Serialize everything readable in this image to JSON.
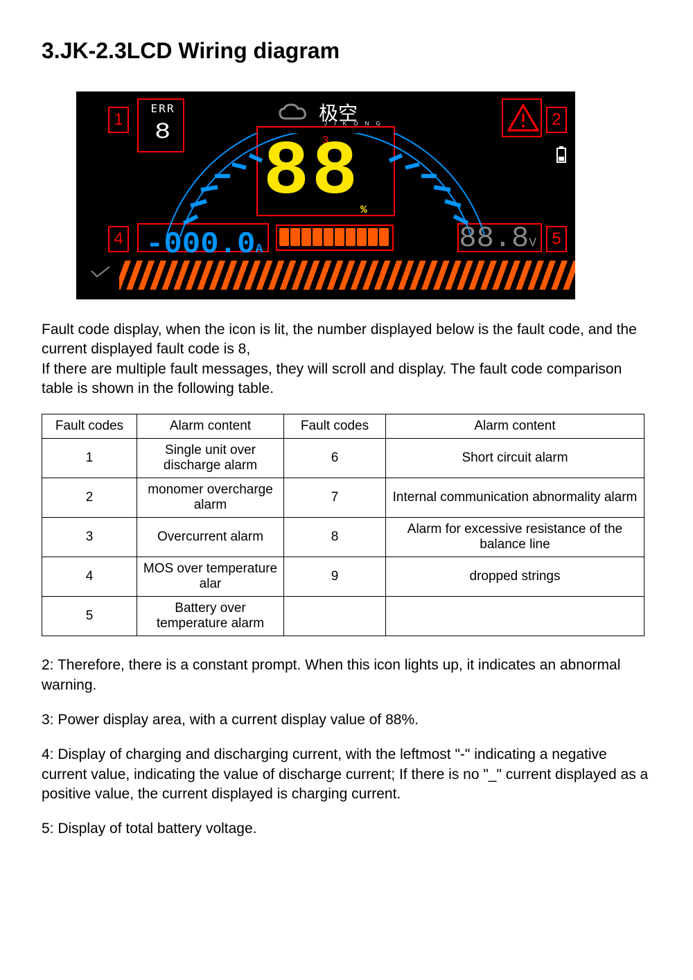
{
  "title": "3.JK-2.3LCD Wiring diagram",
  "lcd": {
    "err_label": "ERR",
    "err_digit": "8",
    "logo_cn": "极空",
    "logo_en": "J I K O N G",
    "big_soc": "88",
    "pct_symbol": "%",
    "current_text": "-000.0",
    "current_unit": "A",
    "voltage_text": "88.8",
    "voltage_unit": "V",
    "bar_segments": 10,
    "callouts": {
      "c1": "1",
      "c2": "2",
      "c3": "3",
      "c4": "4",
      "c5": "5"
    },
    "colors": {
      "bg": "#000000",
      "yellow": "#ffe600",
      "orange": "#ff5a00",
      "blue": "#0094ff",
      "red": "#ff0000",
      "gray": "#888888",
      "white": "#ffffff"
    }
  },
  "para1": "Fault code display, when the icon is lit, the number displayed below is the fault code, and the current displayed fault code is 8,",
  "para1b": "If there are multiple fault messages, they will scroll and display. The fault code comparison table is shown in the following table.",
  "table": {
    "headers": {
      "h1": "Fault codes",
      "h2": "Alarm content",
      "h3": "Fault codes",
      "h4": "Alarm content"
    },
    "rows": [
      {
        "a": "1",
        "b": "Single unit over discharge alarm",
        "c": "6",
        "d": "Short circuit alarm"
      },
      {
        "a": "2",
        "b": "monomer overcharge alarm",
        "c": "7",
        "d": "Internal communication abnormality alarm"
      },
      {
        "a": "3",
        "b": "Overcurrent alarm",
        "c": "8",
        "d": "Alarm for excessive resistance of the balance line"
      },
      {
        "a": "4",
        "b": "MOS over temperature alar",
        "c": "9",
        "d": "dropped strings"
      },
      {
        "a": "5",
        "b": "Battery over temperature alarm",
        "c": "",
        "d": ""
      }
    ]
  },
  "para2": "2: Therefore, there is a constant prompt. When this icon lights up, it indicates an abnormal warning.",
  "para3": "3: Power display area, with a current display value of 88%.",
  "para4": "4: Display of charging and discharging current, with the leftmost \"-\" indicating a negative current value, indicating the value of discharge current; If there is no \"_\" current displayed as a positive value, the current displayed is charging current.",
  "para5": "5: Display of total battery voltage."
}
